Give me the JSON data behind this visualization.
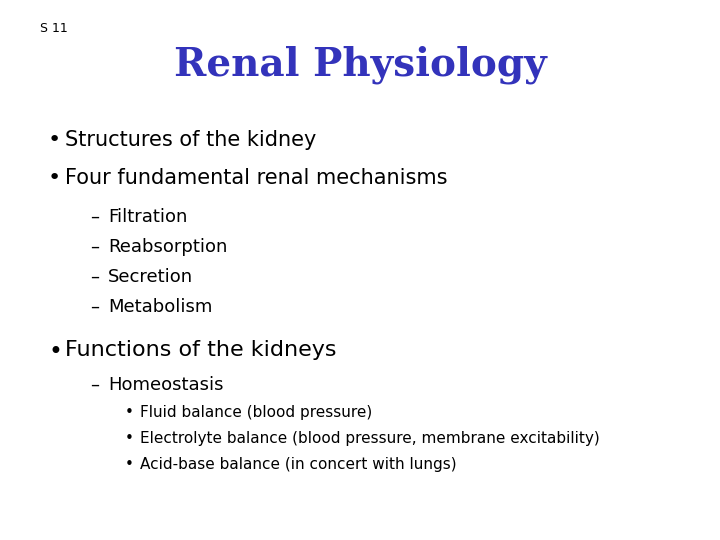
{
  "background_color": "#ffffff",
  "slide_number": "S 11",
  "slide_number_fontsize": 9,
  "slide_number_color": "#000000",
  "title": "Renal Physiology",
  "title_color": "#3333bb",
  "title_fontsize": 28,
  "title_fontweight": "bold",
  "bullet1_text": "Structures of the kidney",
  "bullet2_text": "Four fundamental renal mechanisms",
  "bullet_fontsize": 15,
  "bullet_color": "#000000",
  "sub_items": [
    "Filtration",
    "Reabsorption",
    "Secretion",
    "Metabolism"
  ],
  "sub_fontsize": 13,
  "sub_color": "#000000",
  "bullet3_text": "Functions of the kidneys",
  "bullet3_fontsize": 16,
  "sub2_item": "Homeostasis",
  "sub2_fontsize": 13,
  "sub3_items": [
    "Fluid balance (blood pressure)",
    "Electrolyte balance (blood pressure, membrane excitability)",
    "Acid-base balance (in concert with lungs)"
  ],
  "sub3_fontsize": 11
}
